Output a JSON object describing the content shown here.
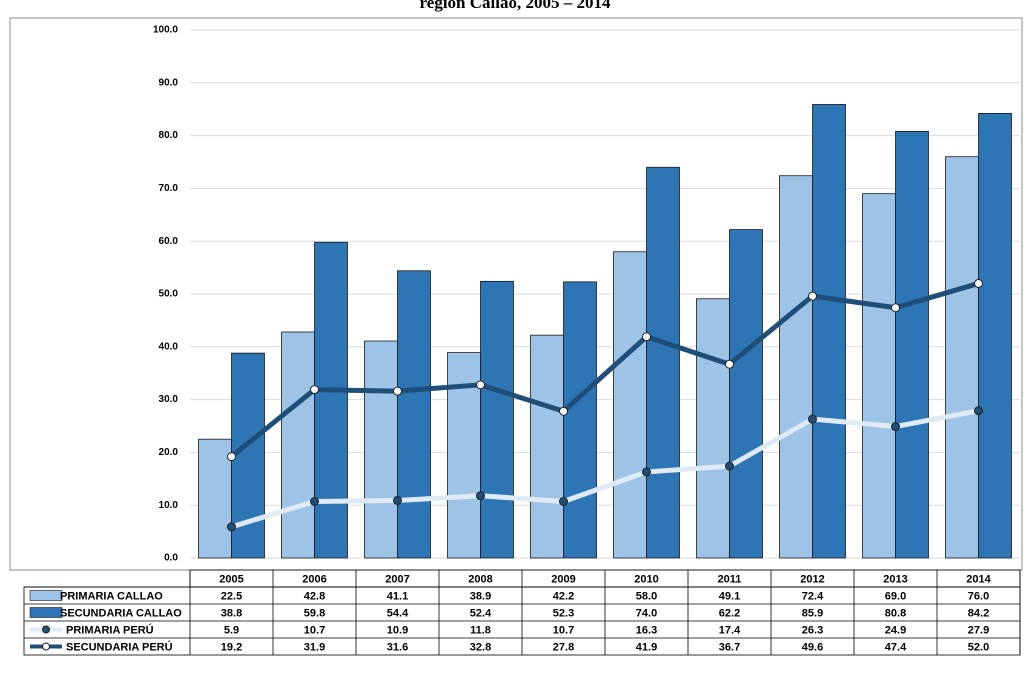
{
  "chart_data": {
    "type": "bar-line",
    "title": "región Callao, 2005 – 2014",
    "categories": [
      "2005",
      "2006",
      "2007",
      "2008",
      "2009",
      "2010",
      "2011",
      "2012",
      "2013",
      "2014"
    ],
    "ylim": [
      0,
      100
    ],
    "yticks": [
      {
        "value": 0,
        "label": "0.0"
      },
      {
        "value": 10,
        "label": "10.0"
      },
      {
        "value": 20,
        "label": "20.0"
      },
      {
        "value": 30,
        "label": "30.0"
      },
      {
        "value": 40,
        "label": "40.0"
      },
      {
        "value": 50,
        "label": "50.0"
      },
      {
        "value": 60,
        "label": "60.0"
      },
      {
        "value": 70,
        "label": "70.0"
      },
      {
        "value": 80,
        "label": "80.0"
      },
      {
        "value": 90,
        "label": "90.0"
      },
      {
        "value": 100,
        "label": "100.0"
      }
    ],
    "grid": true,
    "series": [
      {
        "name": "PRIMARIA CALLAO",
        "kind": "bar",
        "color": "#9dc3e6",
        "values": [
          22.5,
          42.8,
          41.1,
          38.9,
          42.2,
          58.0,
          49.1,
          72.4,
          69.0,
          76.0
        ],
        "value_labels": [
          "22.5",
          "42.8",
          "41.1",
          "38.9",
          "42.2",
          "58.0",
          "49.1",
          "72.4",
          "69.0",
          "76.0"
        ]
      },
      {
        "name": "SECUNDARIA CALLAO",
        "kind": "bar",
        "color": "#2e75b6",
        "values": [
          38.8,
          59.8,
          54.4,
          52.4,
          52.3,
          74.0,
          62.2,
          85.9,
          80.8,
          84.2
        ],
        "value_labels": [
          "38.8",
          "59.8",
          "54.4",
          "52.4",
          "52.3",
          "74.0",
          "62.2",
          "85.9",
          "80.8",
          "84.2"
        ]
      },
      {
        "name": "PRIMARIA PERÚ",
        "kind": "line",
        "color": "#deebf7",
        "marker": "#1f4e79",
        "values": [
          5.9,
          10.7,
          10.9,
          11.8,
          10.7,
          16.3,
          17.4,
          26.3,
          24.9,
          27.9
        ],
        "value_labels": [
          "5.9",
          "10.7",
          "10.9",
          "11.8",
          "10.7",
          "16.3",
          "17.4",
          "26.3",
          "24.9",
          "27.9"
        ]
      },
      {
        "name": "SECUNDARIA PERÚ",
        "kind": "line",
        "color": "#1f4e79",
        "marker": "#ffffff",
        "values": [
          19.2,
          31.9,
          31.6,
          32.8,
          27.8,
          41.9,
          36.7,
          49.6,
          47.4,
          52.0
        ],
        "value_labels": [
          "19.2",
          "31.9",
          "31.6",
          "32.8",
          "27.8",
          "41.9",
          "36.7",
          "49.6",
          "47.4",
          "52.0"
        ]
      }
    ]
  }
}
